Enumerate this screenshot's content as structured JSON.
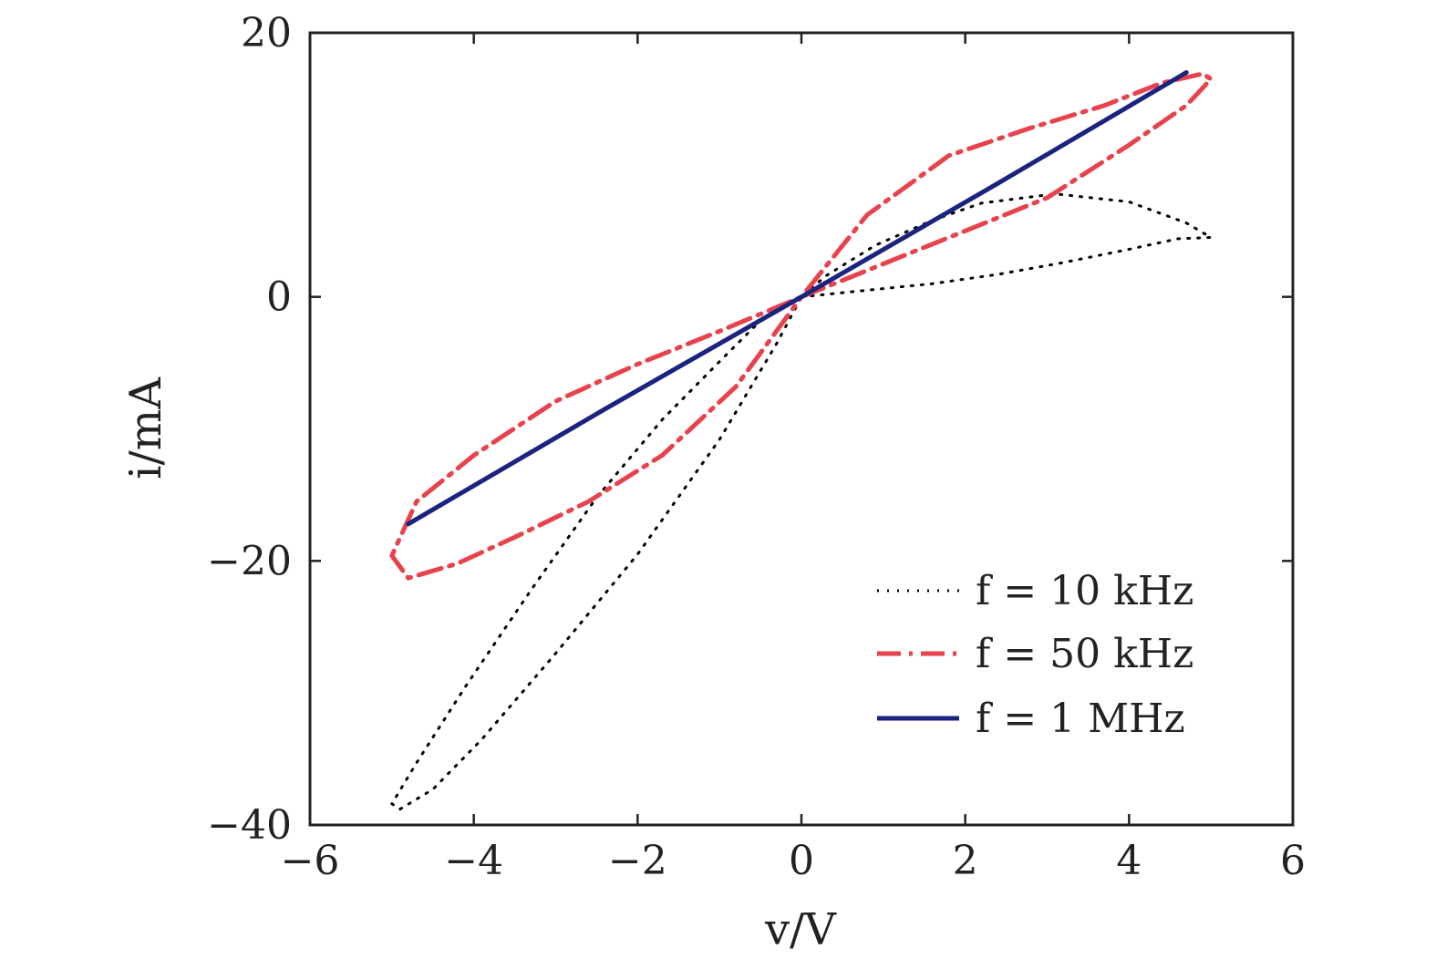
{
  "chart_data": {
    "type": "line",
    "xlabel": "v/V",
    "ylabel": "i/mA",
    "xlim": [
      -6,
      6
    ],
    "ylim": [
      -40,
      20
    ],
    "x_ticks": [
      -6,
      -4,
      -2,
      0,
      2,
      4,
      6
    ],
    "y_ticks": [
      -40,
      -20,
      0,
      20
    ],
    "x_tick_labels": [
      "−6",
      "−4",
      "−2",
      "0",
      "2",
      "4",
      "6"
    ],
    "y_tick_labels": [
      "−40",
      "−20",
      "0",
      "20"
    ],
    "grid": false,
    "legend_position": "bottom-right",
    "series": [
      {
        "name": "f = 10 kHz",
        "color": "#000000",
        "style": "dotted",
        "x": [
          0.0,
          0.8,
          1.6,
          2.4,
          3.2,
          4.0,
          4.6,
          5.0,
          4.7,
          4.0,
          3.1,
          2.2,
          1.6,
          0.9,
          0.3,
          0.0,
          -0.5,
          -1.0,
          -1.7,
          -2.5,
          -3.3,
          -4.1,
          -4.7,
          -5.0,
          -4.9,
          -4.5,
          -3.9,
          -3.0,
          -2.0,
          -1.0,
          -0.3,
          0.0
        ],
        "y": [
          0.0,
          0.5,
          1.0,
          1.7,
          2.6,
          3.6,
          4.4,
          4.5,
          5.6,
          7.2,
          7.8,
          7.1,
          5.8,
          3.9,
          1.6,
          0.0,
          -1.8,
          -4.9,
          -9.3,
          -15.2,
          -22.2,
          -29.5,
          -35.3,
          -38.4,
          -38.8,
          -37.3,
          -33.5,
          -27.0,
          -19.5,
          -10.8,
          -3.5,
          0.0
        ]
      },
      {
        "name": "f = 50 kHz",
        "color": "#e8424c",
        "style": "dashdot",
        "x": [
          0.0,
          1.0,
          2.0,
          3.0,
          4.0,
          4.7,
          5.0,
          4.9,
          4.4,
          3.7,
          2.8,
          1.8,
          0.8,
          0.0,
          -1.0,
          -2.0,
          -3.0,
          -4.0,
          -4.7,
          -5.0,
          -4.8,
          -4.2,
          -3.5,
          -2.6,
          -1.7,
          -0.8,
          0.0
        ],
        "y": [
          0.0,
          2.5,
          5.0,
          7.5,
          11.5,
          14.5,
          16.5,
          16.9,
          16.2,
          14.5,
          12.8,
          10.7,
          6.2,
          0.0,
          -2.6,
          -5.1,
          -7.9,
          -12.0,
          -15.5,
          -19.6,
          -21.3,
          -20.2,
          -18.2,
          -15.5,
          -12.0,
          -6.8,
          0.0
        ]
      },
      {
        "name": "f = 1 MHz",
        "color": "#1a237e",
        "style": "solid",
        "x": [
          -4.8,
          -2.4,
          0.0,
          2.4,
          4.7
        ],
        "y": [
          -17.2,
          -8.5,
          0.0,
          8.6,
          17.0
        ]
      }
    ]
  }
}
